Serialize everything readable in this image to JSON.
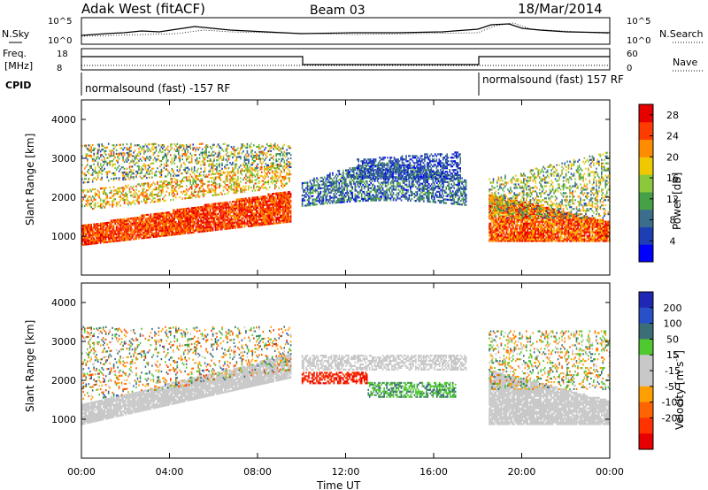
{
  "header": {
    "station": "Adak West (fitACF)",
    "beam": "Beam 03",
    "date": "18/Mar/2014"
  },
  "panels": {
    "nsky_label": "N.Sky",
    "nsearch_label": "N.Search",
    "freq_label_1": "Freq.",
    "freq_label_2": "[MHz]",
    "nave_label": "Nave",
    "cpid_label": "CPID",
    "cpid_1": "normalsound (fast) -157 RF",
    "cpid_2": "normalsound (fast) 157 RF",
    "noise_ticks": [
      "10^5",
      "10^0"
    ],
    "freq_ticks": [
      "18",
      "8"
    ],
    "nave_ticks": [
      "60",
      "0"
    ]
  },
  "colors": {
    "power_scale": [
      "#0000ff",
      "#1e3fb4",
      "#3c6e8c",
      "#46a046",
      "#8cc83c",
      "#f0c800",
      "#ff8c00",
      "#ff3c00",
      "#e60000"
    ],
    "velocity_scale": [
      "#1e28b4",
      "#2850c8",
      "#3c6e78",
      "#50c832",
      "#c8c8c8",
      "#c8c8c8",
      "#ffa000",
      "#ff6400",
      "#ff3200",
      "#e60000"
    ]
  },
  "chart_data": [
    {
      "type": "heatmap",
      "title": "",
      "xlabel": "Time UT",
      "ylabel": "Slant Range [km]",
      "xticks": [
        "00:00",
        "04:00",
        "08:00",
        "12:00",
        "16:00",
        "20:00",
        "00:00"
      ],
      "yticks": [
        1000,
        2000,
        3000,
        4000
      ],
      "ylim": [
        0,
        4500
      ],
      "xlim_hours": [
        0,
        24
      ],
      "colorbar": {
        "label": "Power [dB]",
        "ticks": [
          4,
          8,
          12,
          16,
          20,
          24,
          28
        ],
        "range": [
          0,
          30
        ]
      },
      "features": [
        {
          "desc": "strong band",
          "x_hours": [
            0,
            9
          ],
          "range_km": [
            800,
            1300
          ],
          "level_db": 28
        },
        {
          "desc": "rising band",
          "x_hours": [
            5,
            9.5
          ],
          "range_km": [
            1900,
            2800
          ],
          "level_db": 20
        },
        {
          "desc": "arc",
          "x_hours": [
            10,
            17.5
          ],
          "range_km": [
            1800,
            3000
          ],
          "level_db": 8
        },
        {
          "desc": "strong band",
          "x_hours": [
            18.5,
            24
          ],
          "range_km": [
            900,
            1400
          ],
          "level_db": 28
        }
      ]
    },
    {
      "type": "heatmap",
      "title": "",
      "xlabel": "Time UT",
      "ylabel": "Slant Range [km]",
      "xticks": [
        "00:00",
        "04:00",
        "08:00",
        "12:00",
        "16:00",
        "20:00",
        "00:00"
      ],
      "yticks": [
        1000,
        2000,
        3000,
        4000
      ],
      "ylim": [
        0,
        4500
      ],
      "xlim_hours": [
        0,
        24
      ],
      "colorbar": {
        "label": "Velocity [m s^-1]",
        "ticks": [
          200,
          100,
          50,
          15,
          -15,
          -50,
          -100,
          -200
        ],
        "range": [
          -250,
          250
        ]
      },
      "features": [
        {
          "desc": "ground scatter",
          "x_hours": [
            0,
            9.5
          ],
          "range_km": [
            900,
            2700
          ],
          "velocity": 0
        },
        {
          "desc": "negative velocity region",
          "x_hours": [
            11,
            13
          ],
          "range_km": [
            1900,
            2200
          ],
          "velocity": -200
        },
        {
          "desc": "positive velocity region",
          "x_hours": [
            13,
            17
          ],
          "range_km": [
            1600,
            2000
          ],
          "velocity": 50
        },
        {
          "desc": "ground scatter",
          "x_hours": [
            18.5,
            24
          ],
          "range_km": [
            900,
            2200
          ],
          "velocity": 0
        }
      ]
    }
  ]
}
